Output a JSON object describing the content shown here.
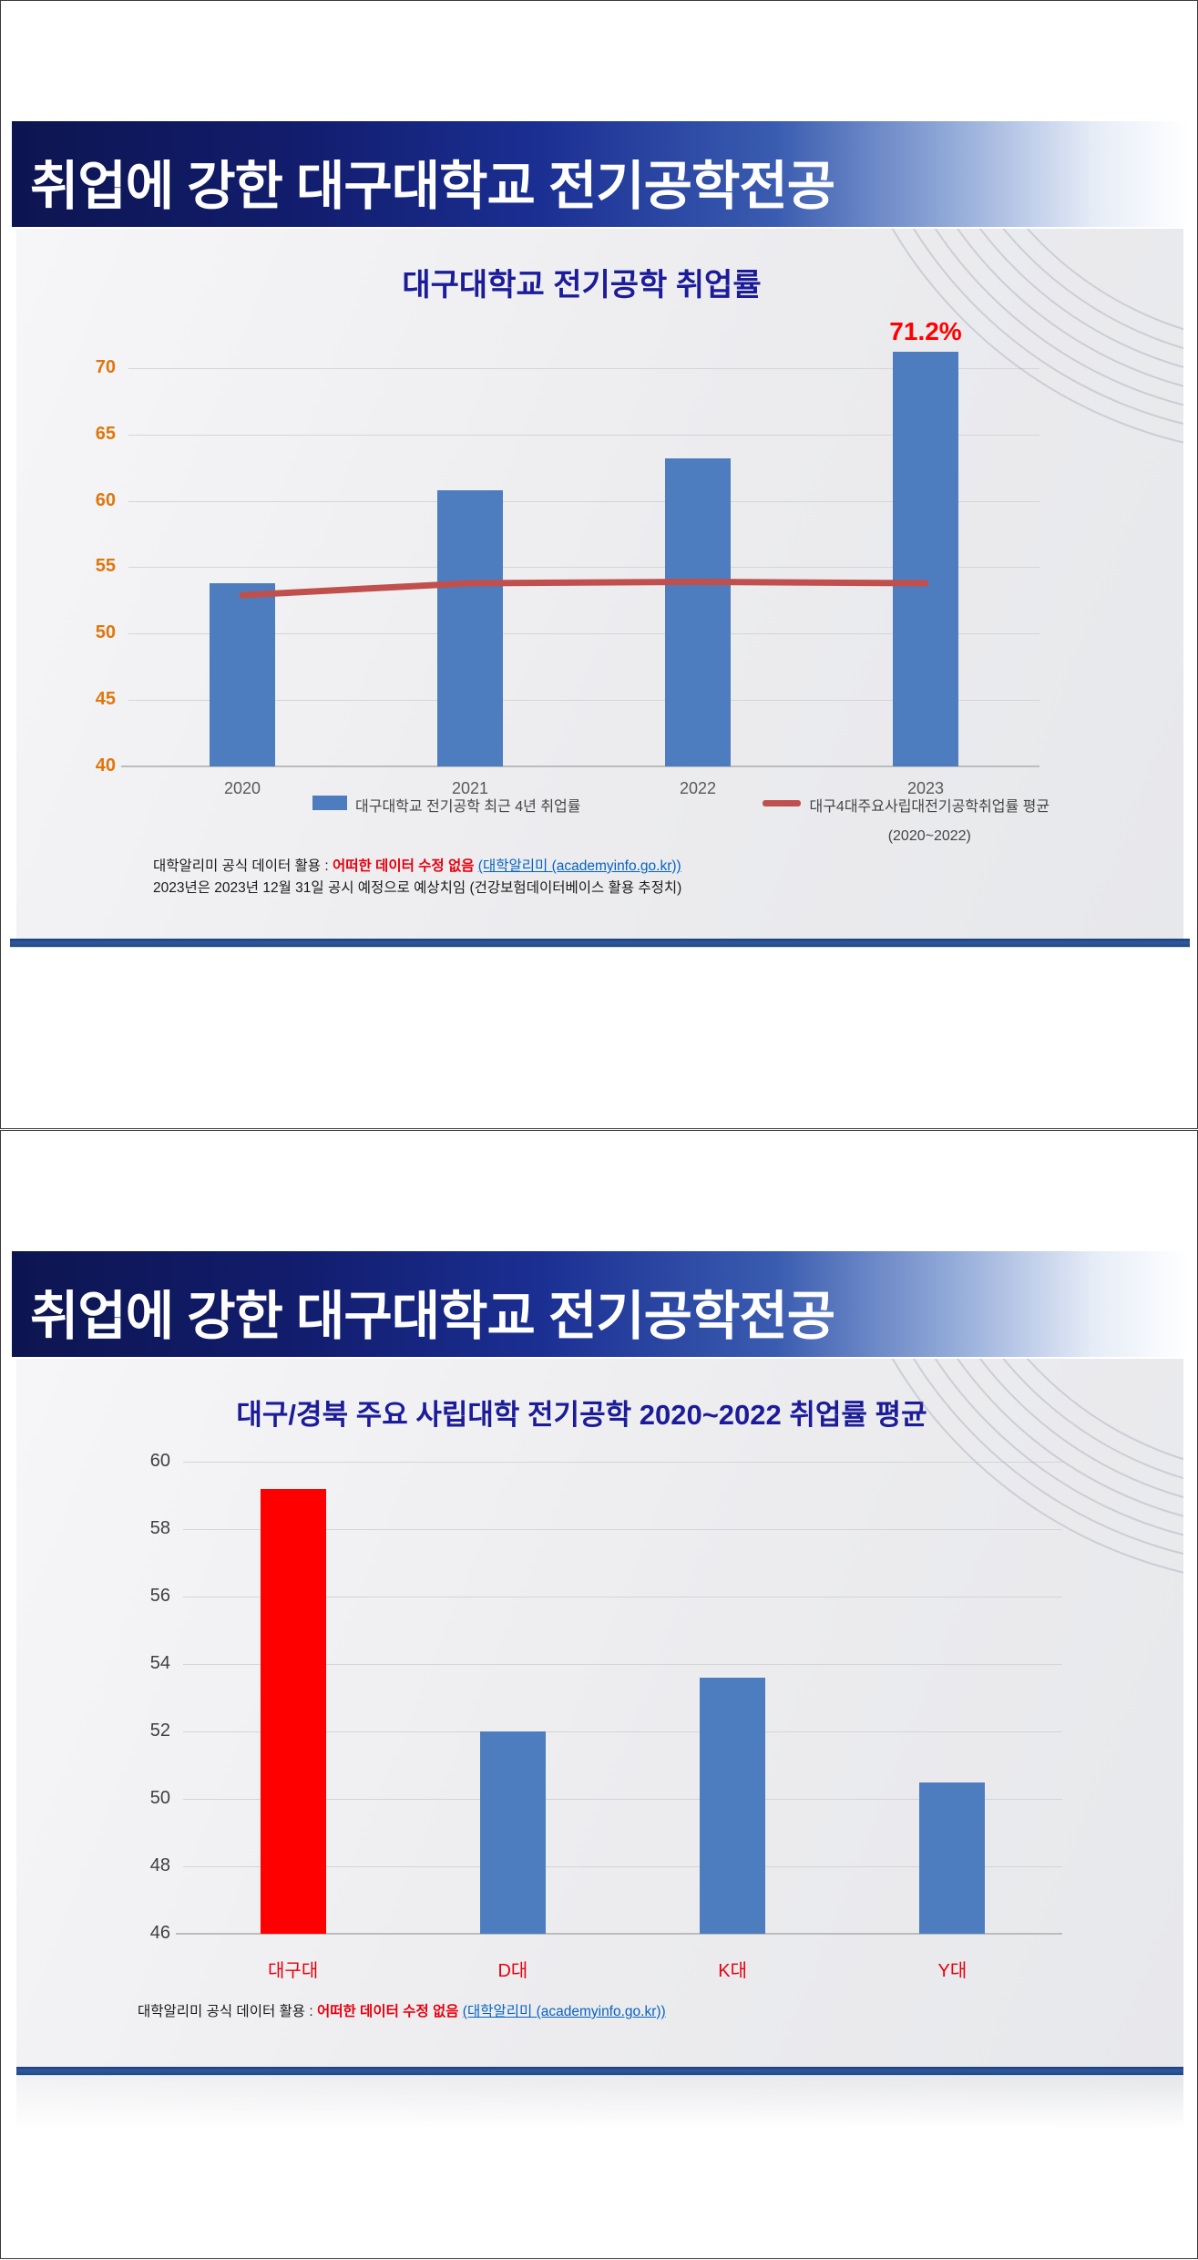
{
  "page1": {
    "title": "취업에 강한 대구대학교 전기공학전공",
    "legend": {
      "bar_label": "대구대학교 전기공학 최근 4년 취업률",
      "line_label": "대구4대주요사립대전기공학취업률 평균",
      "line_sublabel": "(2020~2022)"
    },
    "footer": {
      "prefix": "대학알리미 공식 데이터 활용 : ",
      "highlight": "어떠한 데이터 수정 없음 ",
      "link": "(대학알리미 (academyinfo.go.kr))",
      "line2": "2023년은 2023년 12월 31일 공시 예정으로 예상치임 (건강보험데이터베이스 활용 추정치)"
    }
  },
  "page2": {
    "title": "취업에 강한 대구대학교 전기공학전공",
    "footer": {
      "prefix": "대학알리미 공식 데이터 활용 : ",
      "highlight": "어떠한 데이터 수정 없음 ",
      "link": "(대학알리미 (academyinfo.go.kr))"
    }
  },
  "chart_data": [
    {
      "type": "bar",
      "title": "대구대학교 전기공학 취업률",
      "categories": [
        "2020",
        "2021",
        "2022",
        "2023"
      ],
      "series": [
        {
          "name": "대구대학교 전기공학 최근 4년 취업률",
          "type": "bar",
          "values": [
            53.8,
            60.8,
            63.2,
            71.2
          ],
          "color": "#4d7dbe"
        },
        {
          "name": "대구4대주요사립대전기공학취업률 평균 (2020~2022)",
          "type": "line",
          "values": [
            52.9,
            53.8,
            53.9,
            53.8
          ],
          "color": "#c0504d"
        }
      ],
      "ylim": [
        40,
        72.4
      ],
      "yticks": [
        40,
        45,
        50,
        55,
        60,
        65,
        70
      ],
      "ytick_color": "#e0760c",
      "xtick_color": "#595959",
      "annotation": {
        "text": "71.2%",
        "index": 3,
        "color": "#ff0000"
      },
      "grid": true,
      "legend_position": "bottom"
    },
    {
      "type": "bar",
      "title": "대구/경북 주요 사립대학  전기공학 2020~2022 취업률 평균",
      "categories": [
        "대구대",
        "D대",
        "K대",
        "Y대"
      ],
      "series": [
        {
          "name": "전기공학 2020~2022 취업률 평균",
          "type": "bar",
          "values": [
            59.2,
            52.0,
            53.6,
            50.5
          ],
          "colors": [
            "#fe0000",
            "#4d7dbe",
            "#4d7dbe",
            "#4d7dbe"
          ],
          "color": "#4d7dbe"
        }
      ],
      "ylim": [
        46,
        60.9
      ],
      "yticks": [
        46,
        48,
        50,
        52,
        54,
        56,
        58,
        60
      ],
      "ytick_color": "#3f3f3f",
      "xtick_color": "#e8000d",
      "grid": true
    }
  ]
}
